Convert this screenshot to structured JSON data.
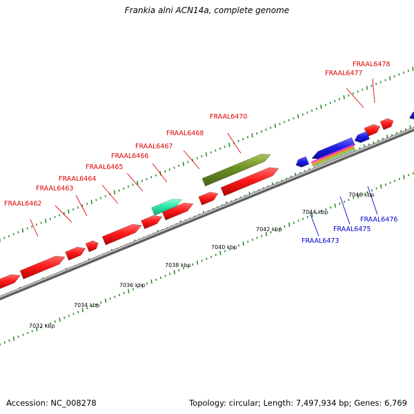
{
  "title": "Frankia alni ACN14a, complete genome",
  "footer": {
    "accession": "Accession: NC_008278",
    "summary": "Topology: circular; Length: 7,497,934 bp; Genes: 6,769"
  },
  "colors": {
    "forward_label": "#e00000",
    "reverse_label": "#0000cc",
    "gene_forward": "#ff1a1a",
    "gene_reverse": "#1f1fe6",
    "gene_olive": "#6b8e23",
    "gene_teal": "#2ee8a8",
    "backbone": "#8c8c8c",
    "tick": "#2a8a2a"
  },
  "scale_labels": [
    "7032 kbp",
    "7034 kbp",
    "7036 kbp",
    "7038 kbp",
    "7040 kbp",
    "7042 kbp",
    "7044 kbp",
    "7046 kbp"
  ],
  "forward_genes": [
    "FRAAL6462",
    "FRAAL6463",
    "FRAAL6464",
    "FRAAL6465",
    "FRAAL6466",
    "FRAAL6467",
    "FRAAL6468",
    "FRAAL6470",
    "FRAAL6477",
    "FRAAL6478"
  ],
  "reverse_genes": [
    "FRAAL6473",
    "FRAAL6475",
    "FRAAL6476"
  ]
}
